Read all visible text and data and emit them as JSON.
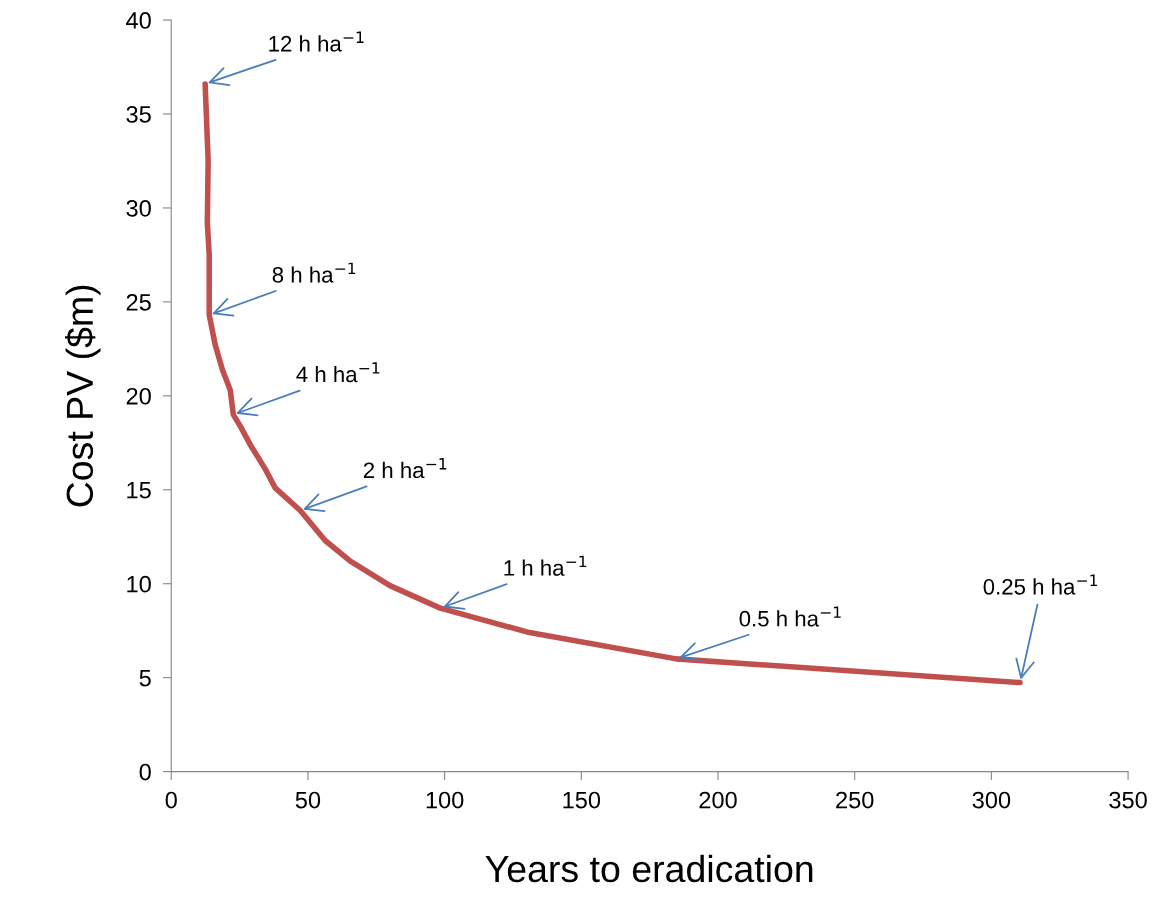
{
  "chart_data": {
    "type": "line",
    "xlabel": "Years to eradication",
    "ylabel": "Cost PV ($m)",
    "x": [
      12.4,
      13.5,
      13.2,
      13.9,
      13.9,
      16.1,
      18.7,
      21.6,
      22.7,
      25.2,
      28.9,
      34.4,
      38,
      47.2,
      56.3,
      65.5,
      80,
      98.4,
      131,
      184.7,
      310.5
    ],
    "series": [
      {
        "color": "#c0504d",
        "values": [
          36.6,
          32.5,
          29.2,
          27.5,
          24.3,
          22.7,
          21.4,
          20.3,
          19.0,
          18.4,
          17.4,
          16.1,
          15.1,
          13.9,
          12.3,
          11.2,
          9.9,
          8.7,
          7.4,
          6.0,
          4.74
        ]
      }
    ],
    "xlim": [
      0,
      350
    ],
    "xticks": [
      0,
      50,
      100,
      150,
      200,
      250,
      300,
      350
    ],
    "ylim": [
      0,
      40
    ],
    "yticks": [
      0,
      5,
      10,
      15,
      20,
      25,
      30,
      35,
      40
    ],
    "grid": false,
    "legend": false,
    "marker": "none",
    "line_style": "solid",
    "annotations": [
      {
        "text": "12 h ha$^{−1}$",
        "x": 12.4,
        "y": 36.6
      },
      {
        "text": "8 h ha$^{−1}$",
        "x": 13.9,
        "y": 24.3
      },
      {
        "text": "4 h ha$^{−1}$",
        "x": 22.7,
        "y": 19.0
      },
      {
        "text": "2 h ha$^{−1}$",
        "x": 47.2,
        "y": 13.9
      },
      {
        "text": "1 h ha$^{−1}$",
        "x": 98.4,
        "y": 8.7
      },
      {
        "text": "0.5 h ha$^{−1}$",
        "x": 184.7,
        "y": 6.0
      },
      {
        "text": "0.25 h ha$^{−1}$",
        "x": 310.5,
        "y": 4.74
      }
    ]
  }
}
